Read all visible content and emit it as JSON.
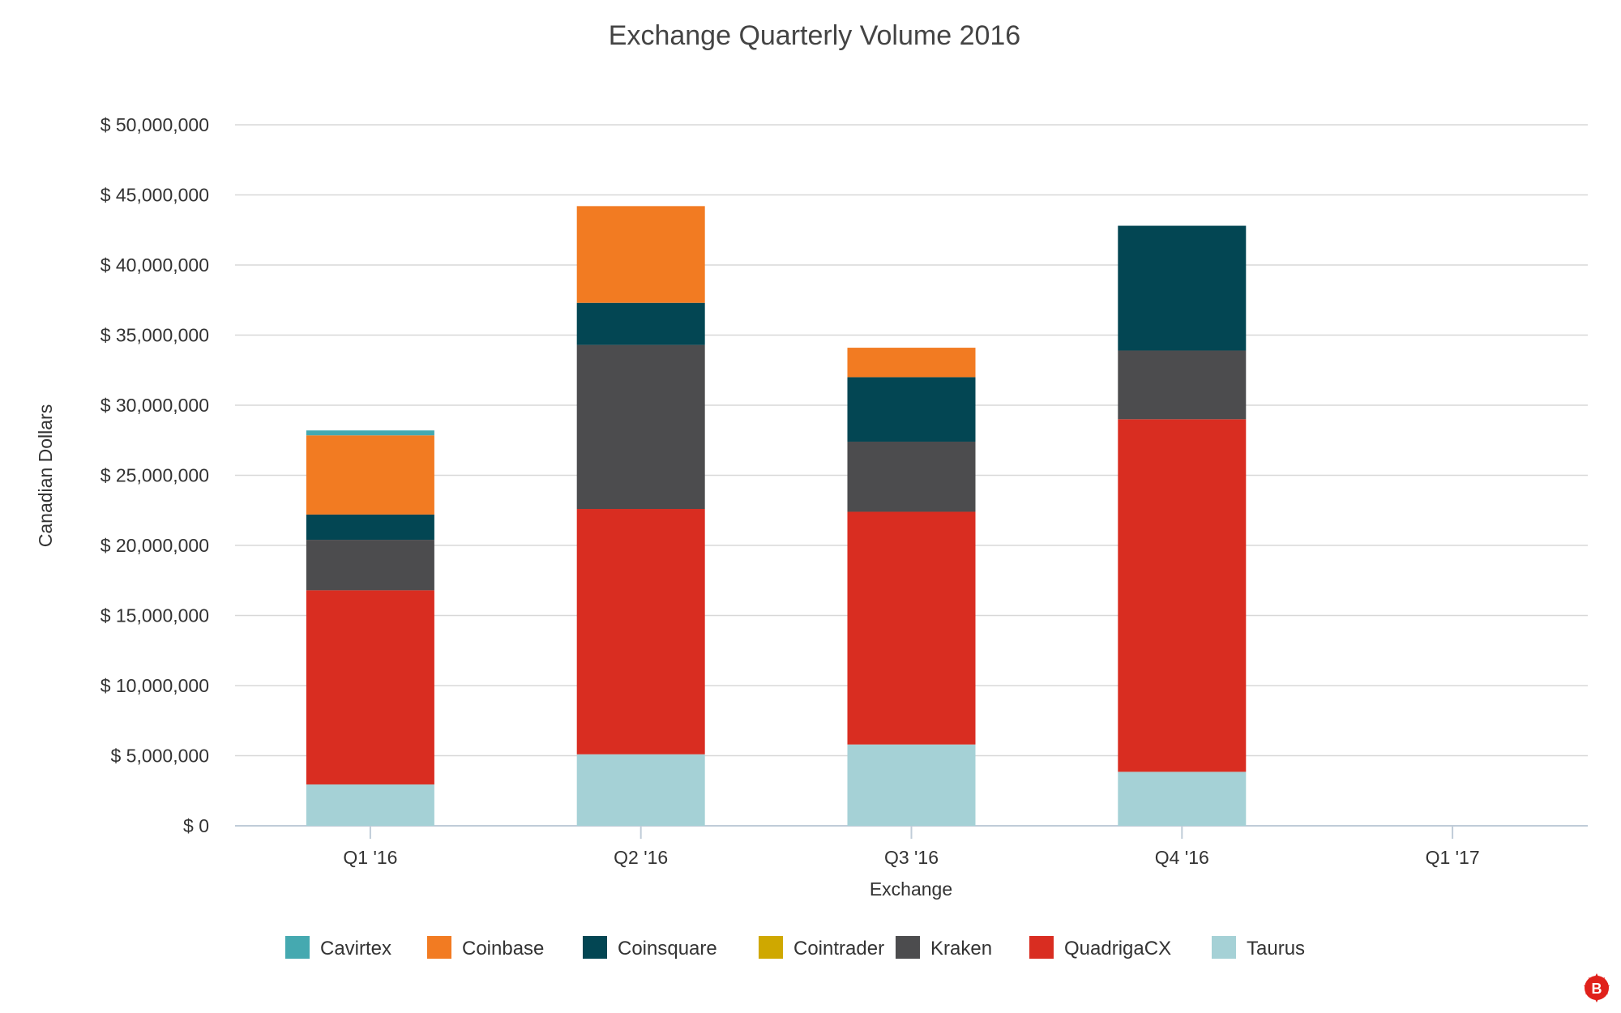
{
  "chart_data": {
    "type": "bar",
    "stacked": true,
    "title": "Exchange Quarterly Volume 2016",
    "xlabel": "Exchange",
    "ylabel": "Canadian Dollars",
    "ylim": [
      0,
      50000000
    ],
    "yticks": [
      0,
      5000000,
      10000000,
      15000000,
      20000000,
      25000000,
      30000000,
      35000000,
      40000000,
      45000000,
      50000000
    ],
    "ytick_labels": [
      "$ 0",
      "$ 5,000,000",
      "$ 10,000,000",
      "$ 15,000,000",
      "$ 20,000,000",
      "$ 25,000,000",
      "$ 30,000,000",
      "$ 35,000,000",
      "$ 40,000,000",
      "$ 45,000,000",
      "$ 50,000,000"
    ],
    "categories": [
      "Q1 '16",
      "Q2 '16",
      "Q3 '16",
      "Q4 '16",
      "Q1 '17"
    ],
    "grid": true,
    "legend_position": "bottom",
    "series": [
      {
        "name": "Taurus",
        "color": "#a5d1d6",
        "values": [
          2950000,
          5100000,
          5800000,
          3850000,
          0
        ]
      },
      {
        "name": "QuadrigaCX",
        "color": "#d92d21",
        "values": [
          13850000,
          17500000,
          16600000,
          25150000,
          0
        ]
      },
      {
        "name": "Kraken",
        "color": "#4c4c4e",
        "values": [
          3600000,
          11700000,
          5000000,
          4900000,
          0
        ]
      },
      {
        "name": "Cointrader",
        "color": "#cfa800",
        "values": [
          0,
          0,
          0,
          0,
          0
        ]
      },
      {
        "name": "Coinsquare",
        "color": "#034653",
        "values": [
          1800000,
          3000000,
          4600000,
          8900000,
          0
        ]
      },
      {
        "name": "Coinbase",
        "color": "#f27b22",
        "values": [
          5650000,
          6900000,
          2100000,
          0,
          0
        ]
      },
      {
        "name": "Cavirtex",
        "color": "#45a9b0",
        "values": [
          350000,
          0,
          0,
          0,
          0
        ]
      }
    ],
    "legend_order": [
      "Cavirtex",
      "Coinbase",
      "Coinsquare",
      "Cointrader",
      "Kraken",
      "QuadrigaCX",
      "Taurus"
    ]
  },
  "logo": {
    "name": "bitcoin-maple-leaf-logo",
    "color": "#e0211b",
    "text": "B"
  }
}
